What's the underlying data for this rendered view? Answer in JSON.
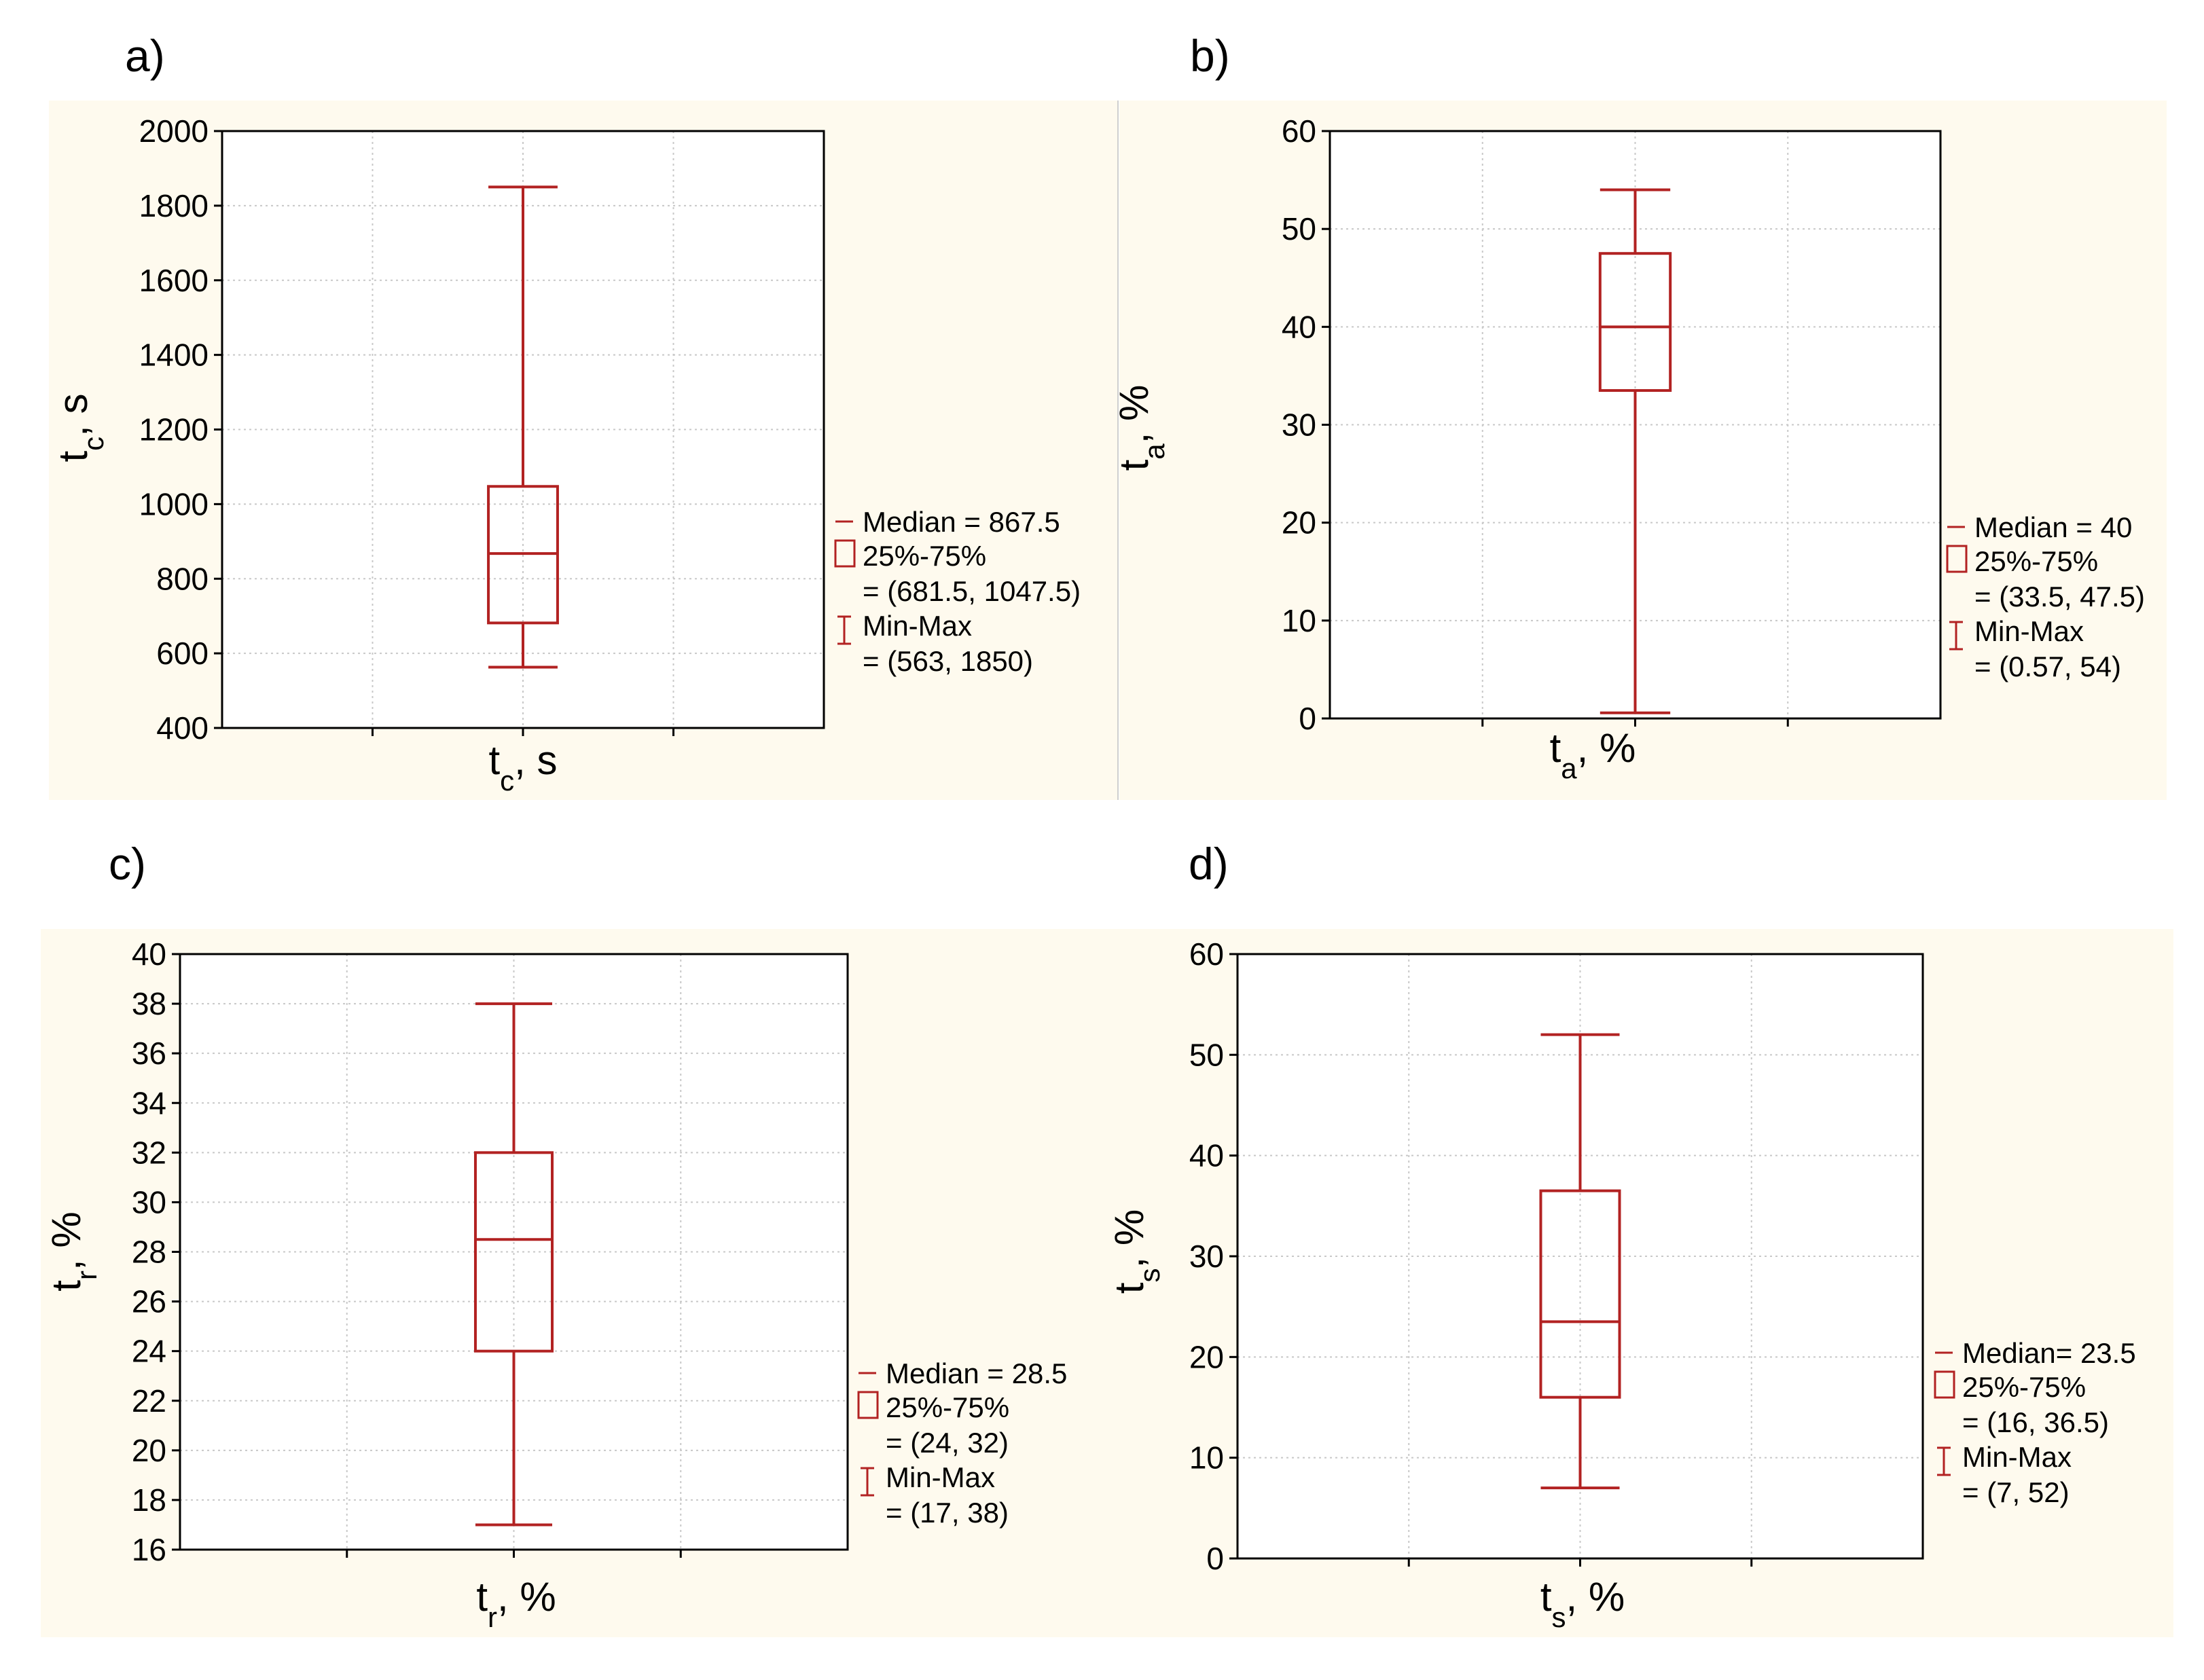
{
  "panel_labels": [
    "a)",
    "b)",
    "c)",
    "d)"
  ],
  "colors": {
    "panel_bg": "#fefaee",
    "box": "#b22222",
    "grid": "#c8c8c8",
    "axis": "#000000"
  },
  "chart_data": [
    {
      "type": "box",
      "ylim": [
        400,
        2000
      ],
      "yticks": [
        400,
        600,
        800,
        1000,
        1200,
        1400,
        1600,
        1800,
        2000
      ],
      "ylabel": {
        "main": "t",
        "sub": "c",
        "rest": ", s"
      },
      "xlabel": {
        "main": "t",
        "sub": "c",
        "rest": ", s"
      },
      "stats": {
        "median": 867.5,
        "q1": 681.5,
        "q3": 1047.5,
        "min": 563,
        "max": 1850
      },
      "legend": {
        "median": "Median = 867.5",
        "box": "25%-75%",
        "box_range": "= (681.5, 1047.5)",
        "whisker": "Min-Max",
        "whisker_range": "= (563, 1850)"
      }
    },
    {
      "type": "box",
      "ylim": [
        0,
        60
      ],
      "yticks": [
        0,
        10,
        20,
        30,
        40,
        50,
        60
      ],
      "ylabel": {
        "main": "t",
        "sub": "a",
        "rest": ", %"
      },
      "xlabel": {
        "main": "t",
        "sub": "a",
        "rest": ", %"
      },
      "stats": {
        "median": 40,
        "q1": 33.5,
        "q3": 47.5,
        "min": 0.57,
        "max": 54
      },
      "legend": {
        "median": "Median = 40",
        "box": "25%-75%",
        "box_range": "= (33.5, 47.5)",
        "whisker": "Min-Max",
        "whisker_range": "= (0.57, 54)"
      }
    },
    {
      "type": "box",
      "ylim": [
        16,
        40
      ],
      "yticks": [
        16,
        18,
        20,
        22,
        24,
        26,
        28,
        30,
        32,
        34,
        36,
        38,
        40
      ],
      "ylabel": {
        "main": "t",
        "sub": "r",
        "rest": ", %"
      },
      "xlabel": {
        "main": "t",
        "sub": "r",
        "rest": ", %"
      },
      "stats": {
        "median": 28.5,
        "q1": 24,
        "q3": 32,
        "min": 17,
        "max": 38
      },
      "legend": {
        "median": "Median = 28.5",
        "box": "25%-75%",
        "box_range": "= (24, 32)",
        "whisker": "Min-Max",
        "whisker_range": "= (17, 38)"
      }
    },
    {
      "type": "box",
      "ylim": [
        0,
        60
      ],
      "yticks": [
        0,
        10,
        20,
        30,
        40,
        50,
        60
      ],
      "ylabel": {
        "main": "t",
        "sub": "s",
        "rest": ", %"
      },
      "xlabel": {
        "main": "t",
        "sub": "s",
        "rest": ", %"
      },
      "stats": {
        "median": 23.5,
        "q1": 16,
        "q3": 36.5,
        "min": 7,
        "max": 52
      },
      "legend": {
        "median": "Median= 23.5",
        "box": "25%-75%",
        "box_range": "= (16, 36.5)",
        "whisker": "Min-Max",
        "whisker_range": "= (7, 52)"
      }
    }
  ]
}
